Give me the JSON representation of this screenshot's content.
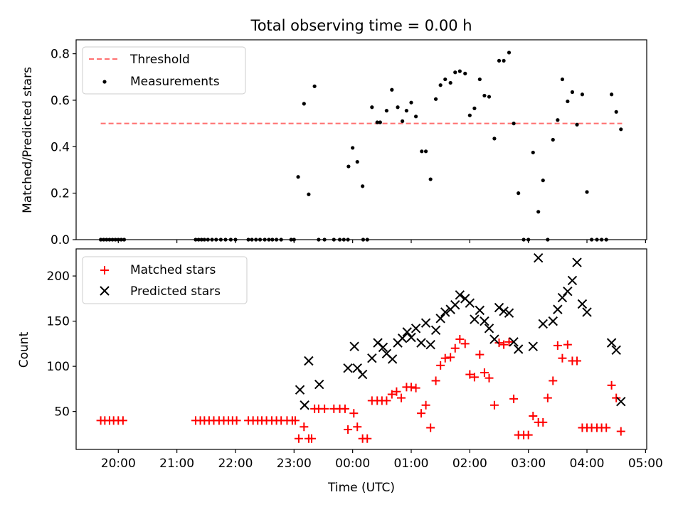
{
  "figure": {
    "title": "Total observing time = 0.00 h",
    "xlabel": "Time (UTC)",
    "x_ticks": [
      "20:00",
      "21:00",
      "22:00",
      "23:00",
      "00:00",
      "01:00",
      "02:00",
      "03:00",
      "04:00",
      "05:00"
    ],
    "x_tick_hours": [
      20,
      21,
      22,
      23,
      24,
      25,
      26,
      27,
      28,
      29
    ],
    "xlim_hours": [
      19.28,
      29.02
    ],
    "colors": {
      "threshold": "#ff7070",
      "matched": "#ff0000",
      "predicted": "#000000",
      "measurement": "#000000"
    }
  },
  "chart_data": [
    {
      "type": "scatter",
      "ylabel": "Matched/Predicted stars",
      "ylim": [
        0,
        0.86
      ],
      "y_ticks": [
        0.0,
        0.2,
        0.4,
        0.6,
        0.8
      ],
      "y_tick_labels": [
        "0.0",
        "0.2",
        "0.4",
        "0.6",
        "0.8"
      ],
      "legend_position": "top-left",
      "threshold": {
        "name": "Threshold",
        "y": 0.5,
        "x_range": [
          19.7,
          28.6
        ]
      },
      "series": [
        {
          "name": "Measurements",
          "x": [
            19.7,
            19.75,
            19.8,
            19.85,
            19.9,
            19.95,
            20.0,
            20.05,
            20.1,
            21.32,
            21.37,
            21.42,
            21.47,
            21.53,
            21.6,
            21.67,
            21.75,
            21.83,
            21.92,
            22.0,
            22.22,
            22.28,
            22.35,
            22.42,
            22.5,
            22.57,
            22.63,
            22.7,
            22.78,
            22.95,
            23.0,
            23.07,
            23.17,
            23.25,
            23.35,
            23.42,
            23.52,
            23.68,
            23.78,
            23.85,
            23.93,
            23.92,
            24.0,
            24.08,
            24.17,
            24.18,
            24.25,
            24.33,
            24.42,
            24.47,
            24.58,
            24.67,
            24.77,
            24.85,
            24.92,
            25.0,
            25.08,
            25.18,
            25.25,
            25.33,
            25.42,
            25.5,
            25.58,
            25.67,
            25.75,
            25.83,
            25.92,
            26.0,
            26.08,
            26.17,
            26.25,
            26.33,
            26.42,
            26.5,
            26.58,
            26.67,
            26.75,
            26.83,
            26.92,
            27.0,
            27.08,
            27.17,
            27.25,
            27.33,
            27.42,
            27.5,
            27.58,
            27.67,
            27.75,
            27.83,
            27.92,
            28.0,
            28.08,
            28.17,
            28.25,
            28.33,
            28.42,
            28.5,
            28.58
          ],
          "y": [
            0,
            0,
            0,
            0,
            0,
            0,
            0,
            0,
            0,
            0,
            0,
            0,
            0,
            0,
            0,
            0,
            0,
            0,
            0,
            0,
            0,
            0,
            0,
            0,
            0,
            0,
            0,
            0,
            0,
            0,
            0,
            0.27,
            0.585,
            0.195,
            0.66,
            0,
            0,
            0,
            0,
            0,
            0.315,
            0,
            0.395,
            0.335,
            0.23,
            0,
            0,
            0.57,
            0.505,
            0.505,
            0.555,
            0.645,
            0.57,
            0.51,
            0.555,
            0.59,
            0.53,
            0.38,
            0.38,
            0.26,
            0.605,
            0.665,
            0.69,
            0.675,
            0.72,
            0.725,
            0.715,
            0.535,
            0.565,
            0.69,
            0.62,
            0.615,
            0.435,
            0.77,
            0.77,
            0.805,
            0.5,
            0.2,
            0,
            0,
            0.375,
            0.12,
            0.255,
            0,
            0.43,
            0.515,
            0.69,
            0.595,
            0.635,
            0.495,
            0.625,
            0.205,
            0,
            0,
            0,
            0,
            0.625,
            0.55,
            0.475
          ]
        }
      ]
    },
    {
      "type": "scatter",
      "ylabel": "Count",
      "ylim": [
        8,
        230
      ],
      "y_ticks": [
        50,
        100,
        150,
        200
      ],
      "y_tick_labels": [
        "50",
        "100",
        "150",
        "200"
      ],
      "legend_position": "top-left",
      "series": [
        {
          "name": "Matched stars",
          "marker": "plus",
          "x": [
            19.7,
            19.77,
            19.85,
            19.92,
            20.0,
            20.08,
            21.32,
            21.4,
            21.47,
            21.55,
            21.63,
            21.72,
            21.8,
            21.88,
            21.95,
            22.02,
            22.22,
            22.3,
            22.38,
            22.45,
            22.53,
            22.62,
            22.7,
            22.78,
            22.88,
            22.97,
            23.02,
            23.08,
            23.17,
            23.25,
            23.3,
            23.35,
            23.42,
            23.52,
            23.68,
            23.78,
            23.87,
            23.92,
            24.02,
            24.08,
            24.17,
            24.25,
            24.33,
            24.42,
            24.5,
            24.58,
            24.67,
            24.75,
            24.83,
            24.92,
            25.0,
            25.08,
            25.17,
            25.25,
            25.33,
            25.42,
            25.5,
            25.58,
            25.67,
            25.75,
            25.83,
            25.92,
            26.0,
            26.08,
            26.17,
            26.25,
            26.33,
            26.42,
            26.5,
            26.58,
            26.67,
            26.75,
            26.83,
            26.92,
            27.0,
            27.08,
            27.17,
            27.25,
            27.33,
            27.42,
            27.5,
            27.58,
            27.67,
            27.75,
            27.83,
            27.92,
            28.0,
            28.08,
            28.17,
            28.25,
            28.33,
            28.42,
            28.5,
            28.58
          ],
          "y": [
            40,
            40,
            40,
            40,
            40,
            40,
            40,
            40,
            40,
            40,
            40,
            40,
            40,
            40,
            40,
            40,
            40,
            40,
            40,
            40,
            40,
            40,
            40,
            40,
            40,
            40,
            40,
            20,
            33,
            20,
            20,
            53,
            53,
            53,
            53,
            53,
            53,
            30,
            48,
            33,
            20,
            20,
            62,
            62,
            62,
            62,
            69,
            72,
            65,
            77,
            77,
            76,
            48,
            57,
            32,
            84,
            101,
            109,
            110,
            120,
            130,
            125,
            91,
            88,
            113,
            93,
            87,
            57,
            126,
            124,
            127,
            64,
            24,
            24,
            24,
            45,
            38,
            38,
            65,
            84,
            123,
            109,
            124,
            106,
            106,
            32,
            32,
            32,
            32,
            32,
            32,
            79,
            65,
            28
          ]
        },
        {
          "name": "Predicted stars",
          "marker": "x",
          "x": [
            23.1,
            23.18,
            23.25,
            23.43,
            23.92,
            24.03,
            24.08,
            24.17,
            24.33,
            24.43,
            24.52,
            24.58,
            24.68,
            24.77,
            24.85,
            24.93,
            25.0,
            25.08,
            25.17,
            25.25,
            25.33,
            25.42,
            25.5,
            25.58,
            25.67,
            25.75,
            25.83,
            25.92,
            26.0,
            26.08,
            26.17,
            26.25,
            26.33,
            26.42,
            26.5,
            26.58,
            26.67,
            26.75,
            26.83,
            27.08,
            27.17,
            27.25,
            27.42,
            27.5,
            27.58,
            27.67,
            27.75,
            27.83,
            27.92,
            28.0,
            28.42,
            28.5,
            28.58
          ],
          "y": [
            74,
            57,
            106,
            80,
            98,
            122,
            98,
            91,
            109,
            126,
            121,
            114,
            108,
            126,
            131,
            138,
            132,
            142,
            126,
            148,
            124,
            140,
            153,
            160,
            163,
            168,
            179,
            175,
            170,
            152,
            162,
            150,
            142,
            130,
            165,
            161,
            159,
            127,
            119,
            122,
            220,
            147,
            150,
            163,
            176,
            183,
            195,
            215,
            169,
            160,
            126,
            118,
            61
          ]
        }
      ]
    }
  ]
}
